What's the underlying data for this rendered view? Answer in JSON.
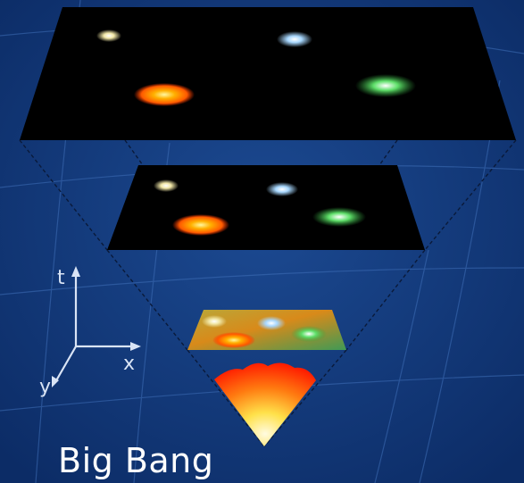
{
  "caption": "Big Bang",
  "axes": {
    "time_label": "t",
    "x_label": "x",
    "y_label": "y"
  },
  "colors": {
    "background": "#123a7a",
    "grid_line": "#3f6fb8",
    "slice_fill": "#000000",
    "galaxy_yellow": "#f2e8a8",
    "galaxy_blue": "#a8d8ff",
    "galaxy_orange": "#ff8a00",
    "galaxy_green": "#5fe06a",
    "big_bang_hot": "#fff7c0",
    "big_bang_outer": "#ff2a00"
  },
  "galaxies": [
    {
      "name": "yellow",
      "icon": "spiral-galaxy-icon"
    },
    {
      "name": "blue",
      "icon": "spiral-galaxy-icon"
    },
    {
      "name": "orange",
      "icon": "spiral-galaxy-icon"
    },
    {
      "name": "green",
      "icon": "spiral-galaxy-icon"
    }
  ]
}
